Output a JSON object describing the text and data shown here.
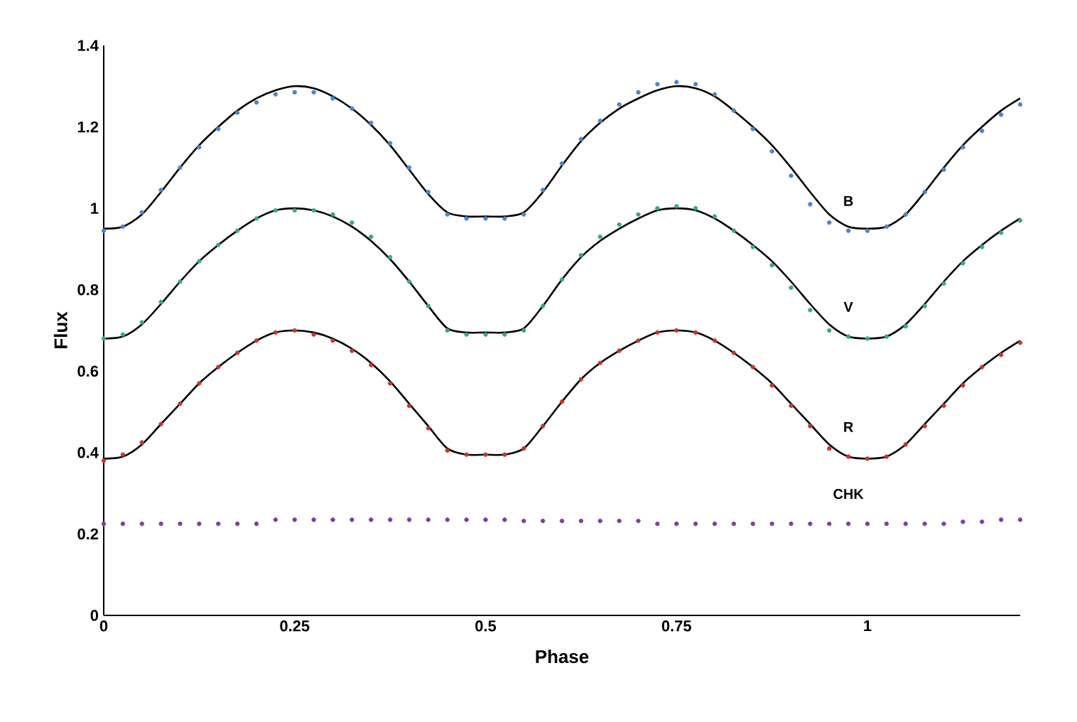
{
  "chart_data": {
    "type": "scatter",
    "xlabel": "Phase",
    "ylabel": "Flux",
    "xlim": [
      0,
      1.2
    ],
    "ylim": [
      0,
      1.4
    ],
    "xticks": [
      0,
      0.25,
      0.5,
      0.75,
      1
    ],
    "yticks": [
      0,
      0.2,
      0.4,
      0.6,
      0.8,
      1,
      1.2,
      1.4
    ],
    "grid": false,
    "x": [
      0,
      0.025,
      0.05,
      0.075,
      0.1,
      0.125,
      0.15,
      0.175,
      0.2,
      0.225,
      0.25,
      0.275,
      0.3,
      0.325,
      0.35,
      0.375,
      0.4,
      0.425,
      0.45,
      0.475,
      0.5,
      0.525,
      0.55,
      0.575,
      0.6,
      0.625,
      0.65,
      0.675,
      0.7,
      0.725,
      0.75,
      0.775,
      0.8,
      0.825,
      0.85,
      0.875,
      0.9,
      0.925,
      0.95,
      0.975,
      1,
      1.025,
      1.05,
      1.075,
      1.1,
      1.125,
      1.15,
      1.175,
      1.2
    ],
    "series": [
      {
        "name": "B",
        "marker": "circle",
        "color": "#4a86c5",
        "values": [
          0.945,
          0.955,
          0.99,
          1.045,
          1.1,
          1.15,
          1.195,
          1.235,
          1.26,
          1.28,
          1.285,
          1.285,
          1.27,
          1.245,
          1.21,
          1.16,
          1.1,
          1.04,
          0.985,
          0.975,
          0.975,
          0.975,
          0.985,
          1.045,
          1.11,
          1.17,
          1.215,
          1.255,
          1.285,
          1.305,
          1.31,
          1.305,
          1.28,
          1.24,
          1.195,
          1.14,
          1.08,
          1.01,
          0.965,
          0.945,
          0.945,
          0.955,
          0.985,
          1.04,
          1.095,
          1.15,
          1.19,
          1.23,
          1.255
        ]
      },
      {
        "type": "line",
        "marker": "none",
        "color": "#000000",
        "values": [
          0.95,
          0.955,
          0.985,
          1.04,
          1.1,
          1.155,
          1.2,
          1.24,
          1.27,
          1.29,
          1.3,
          1.295,
          1.275,
          1.245,
          1.205,
          1.155,
          1.095,
          1.035,
          0.99,
          0.98,
          0.98,
          0.98,
          0.99,
          1.04,
          1.105,
          1.165,
          1.21,
          1.245,
          1.27,
          1.29,
          1.3,
          1.295,
          1.275,
          1.24,
          1.2,
          1.155,
          1.1,
          1.04,
          0.985,
          0.955,
          0.95,
          0.955,
          0.985,
          1.04,
          1.1,
          1.155,
          1.2,
          1.24,
          1.27
        ]
      },
      {
        "name": "V",
        "marker": "circle",
        "color": "#3aa882",
        "values": [
          0.68,
          0.69,
          0.72,
          0.77,
          0.82,
          0.87,
          0.91,
          0.945,
          0.975,
          0.995,
          0.995,
          0.995,
          0.985,
          0.965,
          0.93,
          0.88,
          0.82,
          0.76,
          0.7,
          0.69,
          0.69,
          0.69,
          0.7,
          0.76,
          0.825,
          0.885,
          0.93,
          0.96,
          0.985,
          1.0,
          1.005,
          1.0,
          0.98,
          0.945,
          0.905,
          0.86,
          0.805,
          0.75,
          0.7,
          0.685,
          0.68,
          0.685,
          0.71,
          0.76,
          0.815,
          0.865,
          0.905,
          0.94,
          0.97
        ]
      },
      {
        "type": "line",
        "marker": "none",
        "color": "#000000",
        "values": [
          0.68,
          0.685,
          0.715,
          0.765,
          0.82,
          0.87,
          0.91,
          0.945,
          0.975,
          0.995,
          1.0,
          0.995,
          0.98,
          0.955,
          0.92,
          0.875,
          0.82,
          0.76,
          0.705,
          0.695,
          0.695,
          0.695,
          0.705,
          0.76,
          0.825,
          0.88,
          0.92,
          0.95,
          0.975,
          0.995,
          1.0,
          0.995,
          0.975,
          0.945,
          0.91,
          0.87,
          0.82,
          0.765,
          0.715,
          0.685,
          0.68,
          0.685,
          0.715,
          0.765,
          0.82,
          0.87,
          0.91,
          0.945,
          0.975
        ]
      },
      {
        "name": "R",
        "marker": "circle",
        "color": "#c0392b",
        "values": [
          0.38,
          0.395,
          0.425,
          0.47,
          0.52,
          0.57,
          0.61,
          0.645,
          0.675,
          0.695,
          0.7,
          0.69,
          0.675,
          0.65,
          0.615,
          0.57,
          0.515,
          0.46,
          0.405,
          0.395,
          0.395,
          0.395,
          0.41,
          0.465,
          0.525,
          0.58,
          0.62,
          0.65,
          0.675,
          0.695,
          0.7,
          0.695,
          0.675,
          0.645,
          0.61,
          0.565,
          0.515,
          0.465,
          0.41,
          0.39,
          0.385,
          0.39,
          0.42,
          0.465,
          0.515,
          0.565,
          0.61,
          0.64,
          0.67
        ]
      },
      {
        "type": "line",
        "marker": "none",
        "color": "#000000",
        "values": [
          0.385,
          0.39,
          0.42,
          0.47,
          0.52,
          0.57,
          0.61,
          0.645,
          0.675,
          0.695,
          0.7,
          0.695,
          0.68,
          0.655,
          0.62,
          0.575,
          0.52,
          0.465,
          0.41,
          0.395,
          0.395,
          0.395,
          0.41,
          0.465,
          0.525,
          0.58,
          0.62,
          0.65,
          0.675,
          0.695,
          0.7,
          0.695,
          0.675,
          0.645,
          0.61,
          0.57,
          0.52,
          0.47,
          0.42,
          0.39,
          0.385,
          0.39,
          0.42,
          0.47,
          0.52,
          0.57,
          0.61,
          0.645,
          0.675
        ]
      },
      {
        "name": "CHK",
        "marker": "circle",
        "color": "#7b3fa0",
        "values": [
          0.225,
          0.225,
          0.225,
          0.225,
          0.225,
          0.225,
          0.225,
          0.225,
          0.225,
          0.235,
          0.235,
          0.235,
          0.235,
          0.235,
          0.235,
          0.235,
          0.235,
          0.235,
          0.235,
          0.235,
          0.235,
          0.235,
          0.232,
          0.232,
          0.232,
          0.232,
          0.232,
          0.232,
          0.232,
          0.225,
          0.225,
          0.225,
          0.225,
          0.225,
          0.225,
          0.225,
          0.225,
          0.225,
          0.225,
          0.225,
          0.225,
          0.225,
          0.225,
          0.225,
          0.225,
          0.23,
          0.23,
          0.235,
          0.235
        ]
      }
    ]
  }
}
